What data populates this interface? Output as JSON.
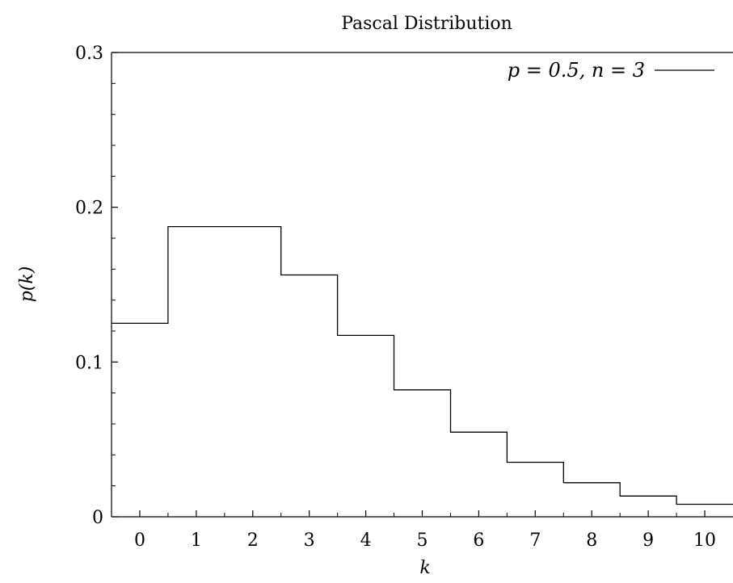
{
  "chart_data": {
    "type": "line",
    "step": "histeps",
    "title": "Pascal Distribution",
    "xlabel": "k",
    "ylabel": "p(k)",
    "xlim": [
      -0.5,
      10.5
    ],
    "ylim": [
      0,
      0.3
    ],
    "x_ticks": [
      0,
      1,
      2,
      3,
      4,
      5,
      6,
      7,
      8,
      9,
      10
    ],
    "y_ticks": [
      0,
      0.1,
      0.2,
      0.3
    ],
    "y_tick_labels": [
      "0",
      "0.1",
      "0.2",
      "0.3"
    ],
    "grid": false,
    "legend": "top-right",
    "colors": {
      "line": "#000000",
      "axes": "#000000",
      "background": "#ffffff"
    },
    "series": [
      {
        "name": "p = 0.5, n = 3",
        "x": [
          0,
          1,
          2,
          3,
          4,
          5,
          6,
          7,
          8,
          9,
          10
        ],
        "y": [
          0.125,
          0.1875,
          0.1875,
          0.15625,
          0.1172,
          0.082,
          0.0547,
          0.0352,
          0.022,
          0.0134,
          0.0081
        ]
      }
    ]
  }
}
